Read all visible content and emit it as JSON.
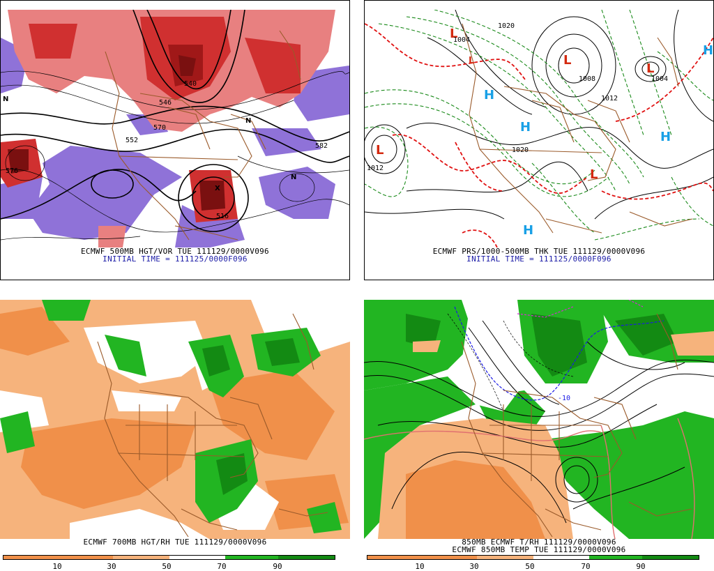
{
  "panels": {
    "top_left": {
      "caption": "ECMWF 500MB HGT/VOR TUE 111129/0000V096",
      "initial": "INITIAL TIME = 111125/0000F096",
      "contour_labels": [
        "546",
        "552",
        "570",
        "582",
        "576",
        "540",
        "516"
      ],
      "centers": [
        "N",
        "N",
        "N",
        "X"
      ]
    },
    "top_right": {
      "caption": "ECMWF PRS/1000-500MB THK TUE 111129/0000V096",
      "initial": "INITIAL TIME = 111125/0000F096",
      "isobar_labels": [
        "1020",
        "1004",
        "1008",
        "1012",
        "1020",
        "1012",
        "1004"
      ],
      "lows": [
        "L",
        "L",
        "L",
        "L",
        "L",
        "L"
      ],
      "highs": [
        "H",
        "H",
        "H",
        "H",
        "H"
      ]
    },
    "bottom_left": {
      "caption": "ECMWF 700MB HGT/RH TUE 111129/0000V096",
      "colorbar_ticks": [
        "10",
        "30",
        "50",
        "70",
        "90"
      ]
    },
    "bottom_right": {
      "caption1": "850MB ECMWF T/RH 111129/0000V096",
      "caption2": "ECMWF 850MB TEMP TUE 111129/0000V096",
      "contour_label": "-10",
      "colorbar_ticks": [
        "10",
        "30",
        "50",
        "70",
        "90"
      ]
    }
  },
  "colors": {
    "dry_dark": "#f0904a",
    "dry_light": "#f6b37c",
    "moist_light": "#22b522",
    "moist_dark": "#138a13",
    "vort_pink": "#e88080",
    "vort_red": "#d03030",
    "vort_dark": "#7a1010",
    "vort_purple": "#8f72d8",
    "map_lines": "#9a5a2a",
    "low_red": "#d42a10",
    "high_cyan": "#19a0e6",
    "thick_red": "#e01010",
    "thick_green": "#1a8a1a"
  }
}
